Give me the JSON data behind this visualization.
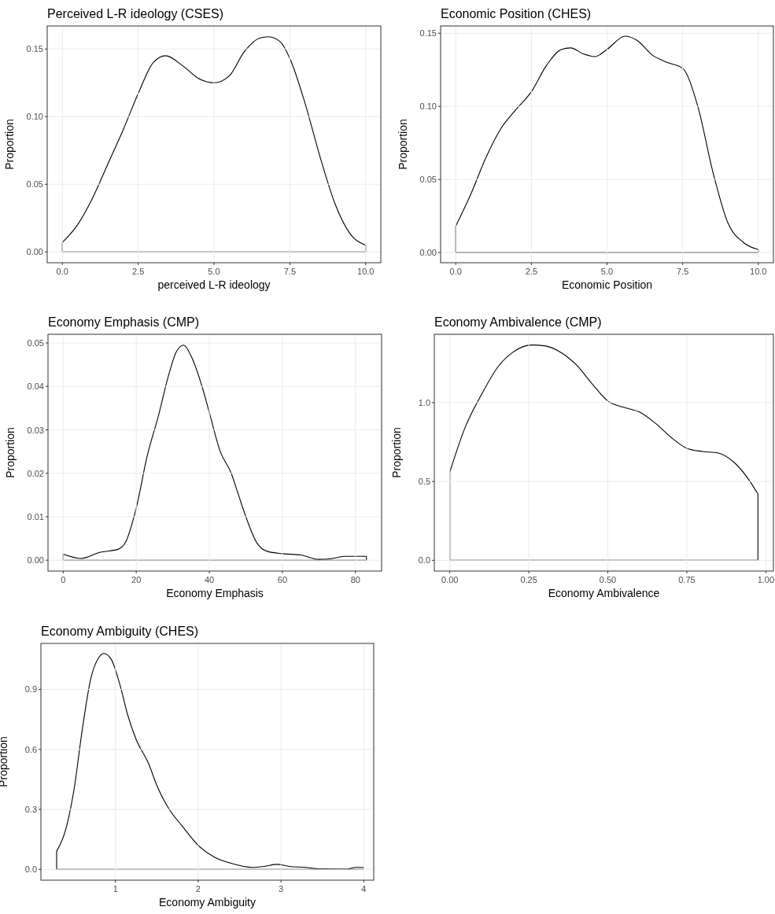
{
  "chart_data": [
    {
      "type": "area",
      "title": "Perceived L-R ideology (CSES)",
      "xlabel": "perceived L-R ideology",
      "ylabel": "Proportion",
      "grid": true,
      "x": [
        0,
        0.5,
        1,
        1.5,
        2,
        2.5,
        3,
        3.4,
        4,
        4.5,
        5,
        5.5,
        6,
        6.5,
        6.8,
        7.2,
        7.5,
        8,
        8.5,
        9,
        9.5,
        10
      ],
      "series": [
        {
          "color": "#000000",
          "values": [
            0.007,
            0.02,
            0.04,
            0.065,
            0.09,
            0.117,
            0.14,
            0.145,
            0.137,
            0.128,
            0.125,
            0.13,
            0.148,
            0.158,
            0.159,
            0.155,
            0.143,
            0.11,
            0.07,
            0.035,
            0.013,
            0.005
          ]
        }
      ],
      "xlim": [
        -0.5,
        10.5
      ],
      "xticks": [
        {
          "value": 0,
          "label": "0.0"
        },
        {
          "value": 2.5,
          "label": "2.5"
        },
        {
          "value": 5,
          "label": "5.0"
        },
        {
          "value": 7.5,
          "label": "7.5"
        },
        {
          "value": 10,
          "label": "10.0"
        }
      ],
      "ylim": [
        -0.008,
        0.167
      ],
      "yticks": [
        {
          "value": 0,
          "label": "0.00"
        },
        {
          "value": 0.05,
          "label": "0.05"
        },
        {
          "value": 0.1,
          "label": "0.10"
        },
        {
          "value": 0.15,
          "label": "0.15"
        }
      ]
    },
    {
      "type": "area",
      "title": "Economic Position (CHES)",
      "xlabel": "Economic Position",
      "ylabel": "Proportion",
      "grid": true,
      "x": [
        0,
        0.5,
        1,
        1.5,
        2,
        2.5,
        3,
        3.5,
        3.8,
        4.2,
        4.6,
        5,
        5.6,
        6,
        6.5,
        7,
        7.5,
        8,
        8.5,
        9,
        9.5,
        10
      ],
      "series": [
        {
          "color": "#000000",
          "values": [
            0.018,
            0.04,
            0.065,
            0.085,
            0.098,
            0.11,
            0.128,
            0.139,
            0.14,
            0.136,
            0.134,
            0.139,
            0.148,
            0.145,
            0.135,
            0.13,
            0.126,
            0.1,
            0.055,
            0.02,
            0.007,
            0.002
          ]
        }
      ],
      "xlim": [
        -0.5,
        10.5
      ],
      "xticks": [
        {
          "value": 0,
          "label": "0.0"
        },
        {
          "value": 2.5,
          "label": "2.5"
        },
        {
          "value": 5,
          "label": "5.0"
        },
        {
          "value": 7.5,
          "label": "7.5"
        },
        {
          "value": 10,
          "label": "10.0"
        }
      ],
      "ylim": [
        -0.007,
        0.155
      ],
      "yticks": [
        {
          "value": 0,
          "label": "0.00"
        },
        {
          "value": 0.05,
          "label": "0.05"
        },
        {
          "value": 0.1,
          "label": "0.10"
        },
        {
          "value": 0.15,
          "label": "0.15"
        }
      ]
    },
    {
      "type": "area",
      "title": "Economy Emphasis (CMP)",
      "xlabel": "Economy Emphasis",
      "ylabel": "Proportion",
      "grid": true,
      "x": [
        0,
        5,
        10,
        15,
        17,
        20,
        23,
        26,
        29,
        31,
        33,
        35,
        38,
        40,
        43,
        46,
        48,
        50,
        53,
        56,
        60,
        65,
        70,
        73,
        77,
        83
      ],
      "series": [
        {
          "color": "#000000",
          "values": [
            0.0014,
            0.0004,
            0.0018,
            0.0025,
            0.004,
            0.012,
            0.024,
            0.033,
            0.043,
            0.048,
            0.0495,
            0.047,
            0.04,
            0.034,
            0.025,
            0.02,
            0.015,
            0.01,
            0.004,
            0.002,
            0.0015,
            0.0012,
            0.0002,
            0.0003,
            0.0009,
            0.0009
          ]
        }
      ],
      "xlim": [
        -4.15,
        87.15
      ],
      "xticks": [
        0,
        20,
        40,
        60,
        80
      ],
      "ylim": [
        -0.0025,
        0.052
      ],
      "yticks": [
        {
          "value": 0,
          "label": "0.00"
        },
        {
          "value": 0.01,
          "label": "0.01"
        },
        {
          "value": 0.02,
          "label": "0.02"
        },
        {
          "value": 0.03,
          "label": "0.03"
        },
        {
          "value": 0.04,
          "label": "0.04"
        },
        {
          "value": 0.05,
          "label": "0.05"
        }
      ]
    },
    {
      "type": "area",
      "title": "Economy Ambivalence (CMP)",
      "xlabel": "Economy Ambivalence",
      "ylabel": "Proportion",
      "grid": true,
      "x": [
        0,
        0.05,
        0.1,
        0.15,
        0.2,
        0.26,
        0.3,
        0.35,
        0.4,
        0.45,
        0.5,
        0.55,
        0.6,
        0.65,
        0.7,
        0.75,
        0.8,
        0.85,
        0.9,
        0.95,
        0.975
      ],
      "series": [
        {
          "color": "#000000",
          "values": [
            0.56,
            0.85,
            1.05,
            1.22,
            1.32,
            1.365,
            1.36,
            1.32,
            1.24,
            1.12,
            1.01,
            0.97,
            0.94,
            0.87,
            0.78,
            0.71,
            0.69,
            0.68,
            0.62,
            0.5,
            0.42
          ]
        }
      ],
      "xlim": [
        -0.049,
        1.024
      ],
      "xticks": [
        {
          "value": 0,
          "label": "0.00"
        },
        {
          "value": 0.25,
          "label": "0.25"
        },
        {
          "value": 0.5,
          "label": "0.50"
        },
        {
          "value": 0.75,
          "label": "0.75"
        },
        {
          "value": 1,
          "label": "1.00"
        }
      ],
      "ylim": [
        -0.068,
        1.433
      ],
      "yticks": [
        {
          "value": 0,
          "label": "0.0"
        },
        {
          "value": 0.5,
          "label": "0.5"
        },
        {
          "value": 1,
          "label": "1.0"
        }
      ]
    },
    {
      "type": "area",
      "title": "Economy Ambiguity (CHES)",
      "xlabel": "Economy Ambiguity",
      "ylabel": "Proportion",
      "grid": true,
      "x": [
        0.29,
        0.4,
        0.5,
        0.6,
        0.7,
        0.8,
        0.86,
        0.95,
        1.05,
        1.15,
        1.25,
        1.4,
        1.5,
        1.65,
        1.8,
        2,
        2.2,
        2.4,
        2.65,
        2.8,
        2.95,
        3.1,
        3.3,
        3.45,
        3.8,
        3.9,
        4
      ],
      "series": [
        {
          "color": "#000000",
          "values": [
            0.09,
            0.2,
            0.4,
            0.7,
            0.95,
            1.06,
            1.08,
            1.05,
            0.93,
            0.77,
            0.65,
            0.53,
            0.42,
            0.3,
            0.22,
            0.12,
            0.06,
            0.03,
            0.01,
            0.015,
            0.025,
            0.015,
            0.01,
            0.003,
            0.002,
            0.01,
            0.01
          ]
        }
      ],
      "xlim": [
        0.1,
        4.12
      ],
      "xticks": [
        1,
        2,
        3,
        4
      ],
      "ylim": [
        -0.054,
        1.13
      ],
      "yticks": [
        {
          "value": 0,
          "label": "0.0"
        },
        {
          "value": 0.3,
          "label": "0.3"
        },
        {
          "value": 0.6,
          "label": "0.6"
        },
        {
          "value": 0.9,
          "label": "0.9"
        }
      ]
    }
  ]
}
